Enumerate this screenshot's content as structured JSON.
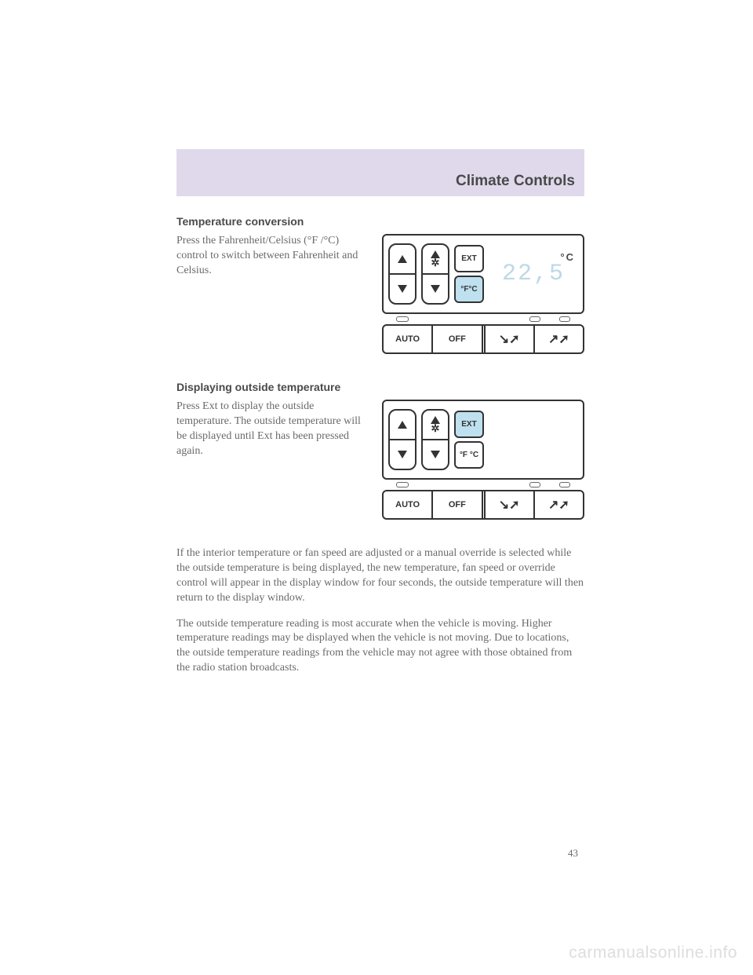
{
  "header": {
    "title": "Climate Controls"
  },
  "section1": {
    "heading": "Temperature conversion",
    "body": "Press the Fahrenheit/Celsius (°F /°C) control to switch between Fahrenheit and Celsius."
  },
  "fig1": {
    "ext_label": "EXT",
    "fc_label": "°F°C",
    "fc_highlight": true,
    "ext_highlight": false,
    "display_value": "22,5",
    "display_unit": "°C",
    "auto": "AUTO",
    "off": "OFF",
    "highlight_color": "#bfe0ef",
    "border_color": "#333333",
    "display_color": "#bcd9e6"
  },
  "section2": {
    "heading": "Displaying outside temperature",
    "body": "Press Ext to display the outside temperature. The outside temperature will be displayed until Ext has been pressed again."
  },
  "fig2": {
    "ext_label": "EXT",
    "fc_label": "°F °C",
    "fc_highlight": false,
    "ext_highlight": true,
    "display_value": "",
    "display_unit": "",
    "auto": "AUTO",
    "off": "OFF",
    "highlight_color": "#bfe0ef"
  },
  "para3": "If the interior temperature or fan speed are adjusted or a manual override is selected while the outside temperature is being displayed, the new temperature, fan speed or override control will appear in the display window for four seconds, the outside temperature will then return to the display window.",
  "para4": "The outside temperature reading is most accurate when the vehicle is moving. Higher temperature readings may be displayed when the vehicle is not moving. Due to locations, the outside temperature readings from the vehicle may not agree with those obtained from the radio station broadcasts.",
  "page_number": "43",
  "watermark": "carmanualsonline.info"
}
